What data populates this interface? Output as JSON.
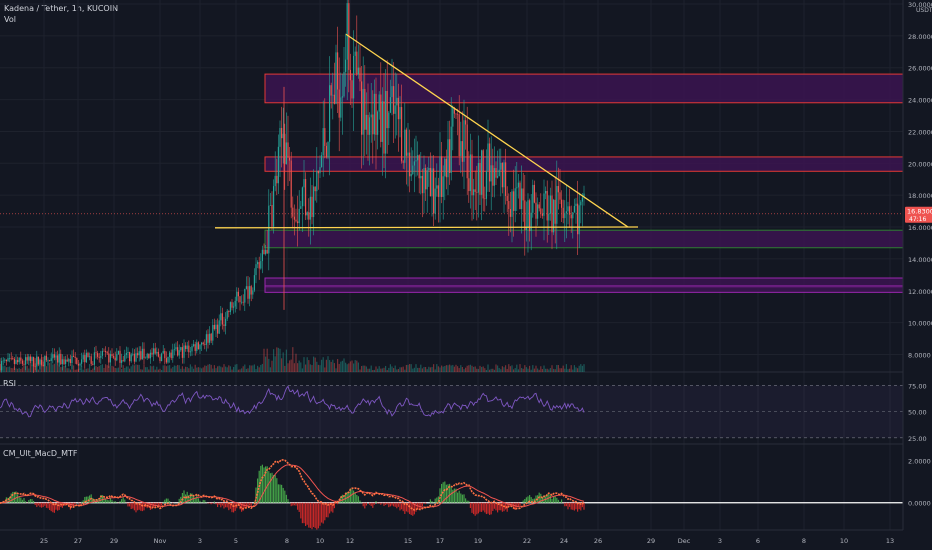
{
  "header": {
    "title": "Kadena / Tether, 1h, KUCOIN",
    "volume_label": "Vol"
  },
  "colors": {
    "background": "#131722",
    "bull": "#26a69a",
    "bear": "#ef5350",
    "zone_fill": "#3b1450",
    "zone_border": "#e53935",
    "support_zone_border": "#2e7d32",
    "trendline": "#ffd54f",
    "rsi": "#7e57c2",
    "macd_line": "#ff7043",
    "macd_signal": "#ef5350",
    "hist_pos": "#43a047",
    "hist_neg": "#c62828"
  },
  "price_axis": {
    "unit": "USDT",
    "ticks": [
      "30.0000",
      "28.0000",
      "26.0000",
      "24.0000",
      "22.0000",
      "20.0000",
      "18.0000",
      "16.0000",
      "14.0000",
      "12.0000",
      "10.0000",
      "8.0000"
    ],
    "last_price": "16.8300",
    "countdown": "47:16"
  },
  "rsi": {
    "label": "RSI",
    "ticks": [
      "75.00",
      "50.00",
      "25.00"
    ]
  },
  "macd": {
    "label": "CM_Ult_MacD_MTF",
    "ticks": [
      "2.0000",
      "0.0000"
    ]
  },
  "time_axis": [
    "25",
    "27",
    "29",
    "Nov",
    "3",
    "5",
    "8",
    "10",
    "12",
    "15",
    "17",
    "19",
    "22",
    "24",
    "26",
    "29",
    "Dec",
    "3",
    "6",
    "8",
    "10",
    "13"
  ],
  "chart_data": [
    {
      "type": "candlestick",
      "title": "Kadena / Tether, 1h, KUCOIN",
      "ylabel": "USDT",
      "ylim": [
        6.9,
        30
      ],
      "price_path_approx": [
        [
          0,
          7.4
        ],
        [
          50,
          7.6
        ],
        [
          100,
          7.8
        ],
        [
          150,
          8.0
        ],
        [
          170,
          7.9
        ],
        [
          190,
          8.4
        ],
        [
          205,
          8.9
        ],
        [
          215,
          9.6
        ],
        [
          225,
          10.4
        ],
        [
          235,
          11.3
        ],
        [
          245,
          11.8
        ],
        [
          255,
          12.8
        ],
        [
          265,
          14.5
        ],
        [
          272,
          17.5
        ],
        [
          278,
          19.5
        ],
        [
          284,
          22.5
        ],
        [
          290,
          19.0
        ],
        [
          298,
          17.2
        ],
        [
          305,
          18.4
        ],
        [
          312,
          17.0
        ],
        [
          320,
          19.8
        ],
        [
          326,
          22.0
        ],
        [
          333,
          24.3
        ],
        [
          340,
          25.2
        ],
        [
          346,
          28.0
        ],
        [
          352,
          26.0
        ],
        [
          358,
          24.5
        ],
        [
          365,
          22.8
        ],
        [
          372,
          23.8
        ],
        [
          380,
          22.2
        ],
        [
          390,
          23.2
        ],
        [
          400,
          22.5
        ],
        [
          408,
          20.5
        ],
        [
          416,
          20.0
        ],
        [
          424,
          19.4
        ],
        [
          430,
          18.0
        ],
        [
          438,
          19.0
        ],
        [
          446,
          18.5
        ],
        [
          452,
          22.0
        ],
        [
          458,
          23.0
        ],
        [
          462,
          21.5
        ],
        [
          470,
          19.5
        ],
        [
          478,
          18.8
        ],
        [
          486,
          19.8
        ],
        [
          494,
          18.6
        ],
        [
          502,
          19.2
        ],
        [
          510,
          18.0
        ],
        [
          518,
          17.5
        ],
        [
          526,
          17.0
        ],
        [
          534,
          17.8
        ],
        [
          540,
          16.5
        ],
        [
          546,
          17.6
        ],
        [
          552,
          16.6
        ],
        [
          560,
          17.8
        ],
        [
          566,
          18.2
        ],
        [
          572,
          17.2
        ],
        [
          578,
          16.6
        ],
        [
          585,
          16.83
        ]
      ],
      "zones": [
        {
          "from": 23.8,
          "to": 25.6
        },
        {
          "from": 19.5,
          "to": 20.4
        },
        {
          "from": 14.7,
          "to": 15.8
        },
        {
          "from": 12.2,
          "to": 12.8
        },
        {
          "from": 11.9,
          "to": 12.3
        }
      ],
      "trendlines": [
        {
          "from": [
            346,
            28.1
          ],
          "to": [
            628,
            16.0
          ]
        },
        {
          "from": [
            215,
            15.95
          ],
          "to": [
            638,
            16.0
          ]
        }
      ]
    },
    {
      "type": "line",
      "name": "RSI",
      "ylim": [
        20,
        85
      ],
      "levels": [
        75,
        50,
        25
      ]
    },
    {
      "type": "bar",
      "name": "CM_Ult_MacD_MTF",
      "ylim": [
        -1.2,
        2.6
      ],
      "levels": [
        2,
        0
      ]
    }
  ]
}
